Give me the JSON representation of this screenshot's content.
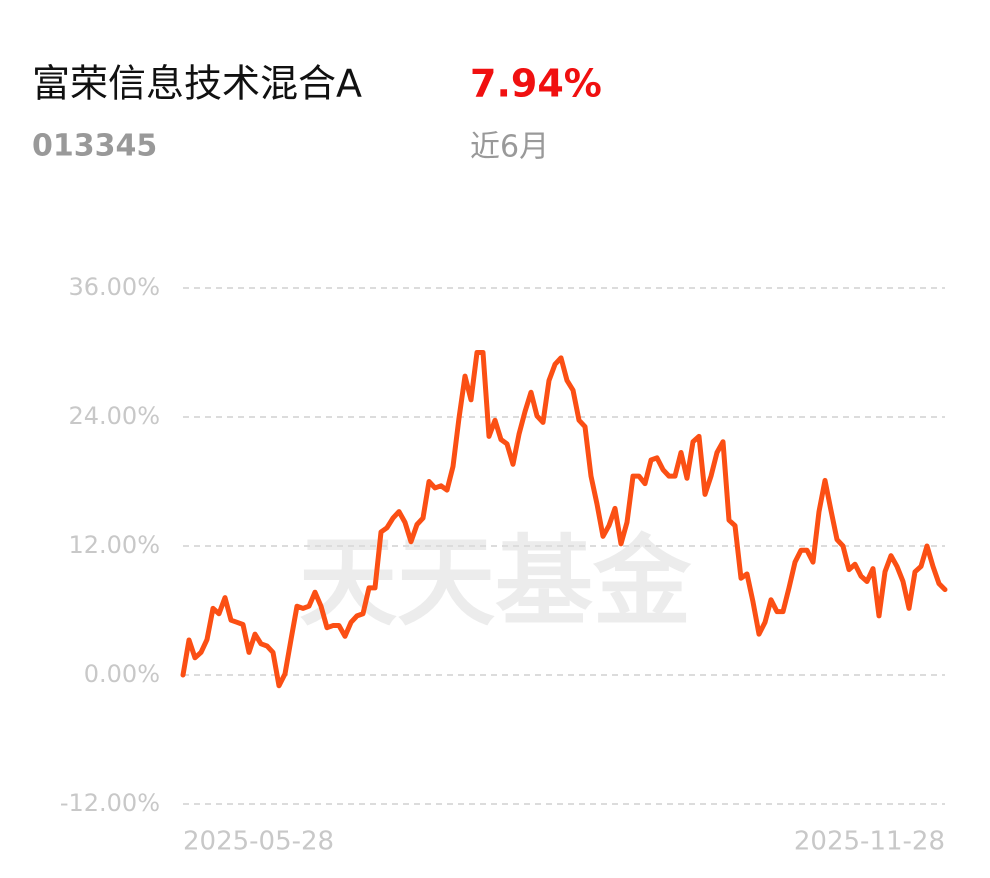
{
  "fund": {
    "code": "013345",
    "return": "7.94%",
    "period": "近6月"
  },
  "watermark": "天天基金",
  "chart_data": {
    "type": "line",
    "title": "富荣信息技术混合A",
    "color": "#fb4f14",
    "categories": [
      "2025-05-28",
      null,
      null,
      null,
      null,
      null,
      null,
      null,
      null,
      null,
      null,
      null,
      null,
      null,
      null,
      null,
      null,
      null,
      null,
      null,
      null,
      null,
      null,
      null,
      null,
      null,
      null,
      null,
      null,
      null,
      null,
      null,
      null,
      null,
      null,
      null,
      null,
      null,
      null,
      null,
      null,
      null,
      null,
      null,
      null,
      null,
      null,
      null,
      null,
      null,
      null,
      null,
      null,
      null,
      null,
      null,
      null,
      null,
      null,
      null,
      null,
      null,
      null,
      null,
      null,
      null,
      null,
      null,
      null,
      null,
      null,
      null,
      null,
      null,
      null,
      null,
      null,
      null,
      null,
      null,
      null,
      null,
      null,
      null,
      null,
      null,
      null,
      null,
      null,
      null,
      null,
      null,
      null,
      null,
      null,
      null,
      null,
      null,
      null,
      null,
      null,
      null,
      null,
      null,
      null,
      null,
      null,
      null,
      null,
      null,
      null,
      null,
      null,
      null,
      null,
      null,
      null,
      null,
      null,
      null,
      null,
      null,
      null,
      null,
      null,
      null,
      null,
      "2025-11-28"
    ],
    "values": [
      0,
      3.26,
      1.6,
      2.1,
      3.3,
      6.2,
      5.7,
      7.2,
      5.1,
      4.9,
      4.7,
      2.1,
      3.8,
      2.9,
      2.7,
      2.1,
      -1.0,
      0.1,
      3.3,
      6.4,
      6.2,
      6.4,
      7.7,
      6.4,
      4.4,
      4.6,
      4.6,
      3.6,
      4.9,
      5.5,
      5.7,
      8.1,
      8.1,
      13.3,
      13.7,
      14.6,
      15.2,
      14.2,
      12.4,
      14.0,
      14.6,
      18.0,
      17.4,
      17.6,
      17.2,
      19.4,
      23.9,
      27.8,
      25.6,
      30.0,
      30.0,
      22.2,
      23.7,
      21.9,
      21.5,
      19.6,
      22.4,
      24.5,
      26.3,
      24.1,
      23.5,
      27.4,
      28.9,
      29.5,
      27.4,
      26.5,
      23.7,
      23.1,
      18.5,
      15.9,
      12.9,
      13.9,
      15.5,
      12.2,
      14.2,
      18.5,
      18.5,
      17.8,
      20.0,
      20.2,
      19.1,
      18.5,
      18.5,
      20.7,
      18.3,
      21.7,
      22.2,
      16.8,
      18.5,
      20.7,
      21.7,
      14.4,
      13.9,
      9.0,
      9.4,
      6.8,
      3.8,
      4.9,
      7.0,
      5.9,
      5.9,
      8.1,
      10.5,
      11.6,
      11.6,
      10.5,
      15.2,
      18.1,
      15.3,
      12.6,
      12.0,
      9.8,
      10.3,
      9.2,
      8.7,
      9.9,
      5.5,
      9.6,
      11.1,
      10.1,
      8.7,
      6.2,
      9.6,
      10.1,
      12.0,
      10.1,
      8.5,
      7.94
    ],
    "ylim": [
      -12,
      36
    ],
    "yticks": [
      {
        "value": -12,
        "label": "-12.00%"
      },
      {
        "value": 0,
        "label": "0.00%"
      },
      {
        "value": 12,
        "label": "12.00%"
      },
      {
        "value": 24,
        "label": "24.00%"
      },
      {
        "value": 36,
        "label": "36.00%"
      }
    ],
    "grid": true
  }
}
